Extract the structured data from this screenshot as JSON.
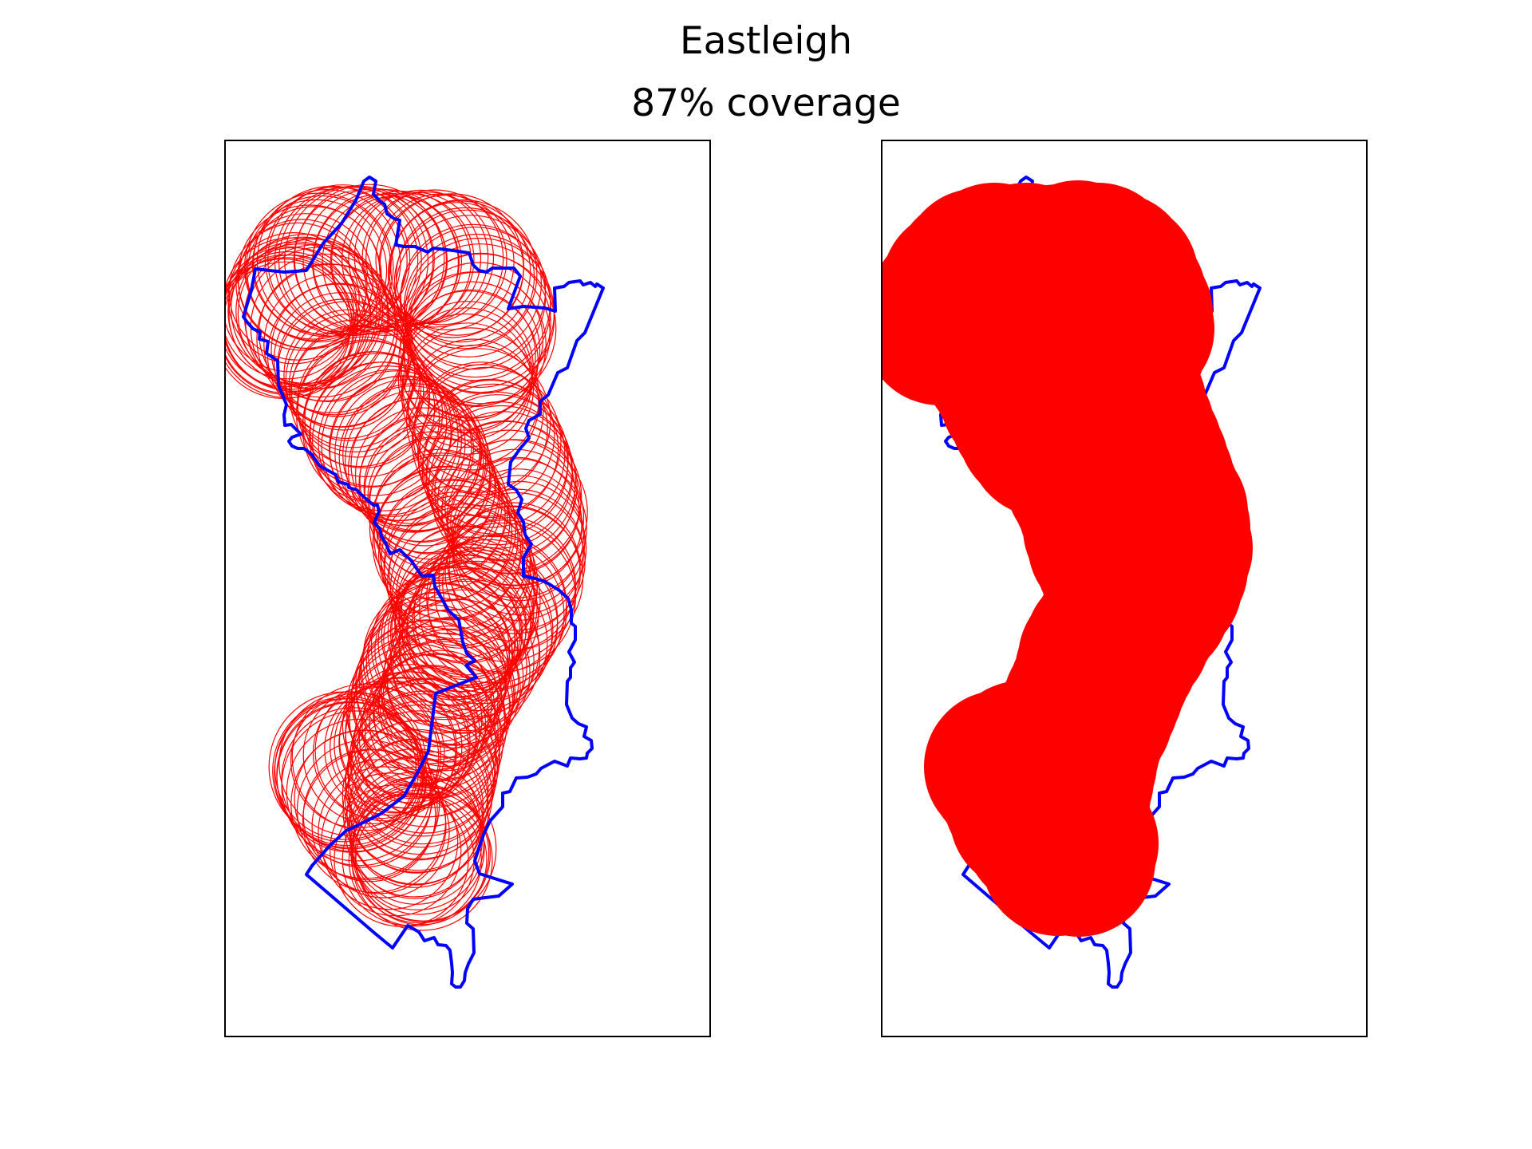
{
  "figure": {
    "title": "Eastleigh",
    "subtitle": "87% coverage"
  },
  "colors": {
    "boundary": "#0000ff",
    "coverage": "#ff0000",
    "frame": "#000000",
    "background": "#ffffff"
  },
  "chart_data": [
    {
      "type": "scatter",
      "panel": "left",
      "description_style": "outline-circles",
      "region": "Eastleigh",
      "coverage_percent": 87,
      "xaxis": "hidden",
      "yaxis": "hidden",
      "grid": false,
      "legend": "none"
    },
    {
      "type": "scatter",
      "panel": "right",
      "description_style": "filled-union",
      "region": "Eastleigh",
      "coverage_percent": 87,
      "xaxis": "hidden",
      "yaxis": "hidden",
      "grid": false,
      "legend": "none"
    }
  ]
}
